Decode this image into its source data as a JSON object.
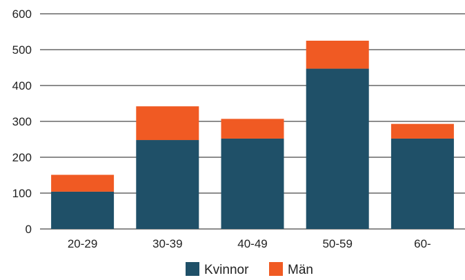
{
  "chart_data": {
    "type": "bar",
    "stacked": true,
    "title": "",
    "xlabel": "",
    "ylabel": "",
    "categories": [
      "20-29",
      "30-39",
      "40-49",
      "50-59",
      "60-"
    ],
    "series": [
      {
        "name": "Kvinnor",
        "values": [
          104,
          248,
          252,
          447,
          252
        ],
        "color": "#1f5068"
      },
      {
        "name": "Män",
        "values": [
          47,
          94,
          55,
          78,
          41
        ],
        "color": "#f05a23"
      }
    ],
    "ylim": [
      0,
      600
    ],
    "yticks": [
      0,
      100,
      200,
      300,
      400,
      500,
      600
    ],
    "grid": true,
    "legend_position": "bottom-center"
  }
}
